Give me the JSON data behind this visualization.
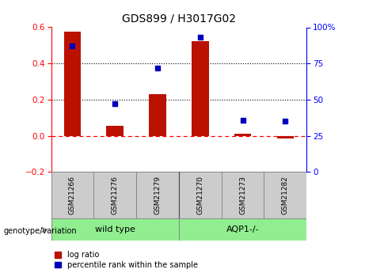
{
  "title": "GDS899 / H3017G02",
  "samples": [
    "GSM21266",
    "GSM21276",
    "GSM21279",
    "GSM21270",
    "GSM21273",
    "GSM21282"
  ],
  "log_ratio": [
    0.575,
    0.055,
    0.23,
    0.525,
    0.01,
    -0.015
  ],
  "percentile_rank": [
    87,
    47,
    72,
    93,
    36,
    35
  ],
  "group1_label": "wild type",
  "group2_label": "AQP1-/-",
  "group1_count": 3,
  "group2_count": 3,
  "bar_color": "#BB1100",
  "dot_color": "#0000BB",
  "group_color": "#90EE90",
  "sample_box_color": "#CCCCCC",
  "ylim_left": [
    -0.2,
    0.6
  ],
  "ylim_right": [
    0,
    100
  ],
  "yticks_left": [
    -0.2,
    0.0,
    0.2,
    0.4,
    0.6
  ],
  "yticks_right": [
    0,
    25,
    50,
    75,
    100
  ],
  "figsize": [
    4.61,
    3.45
  ],
  "dpi": 100
}
